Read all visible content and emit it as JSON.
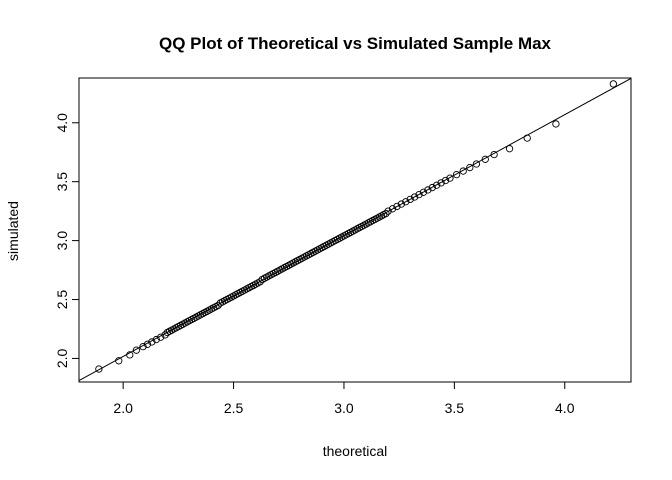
{
  "chart_data": {
    "type": "scatter",
    "title": "QQ Plot of Theoretical vs Simulated Sample Max",
    "xlabel": "theoretical",
    "ylabel": "simulated",
    "xlim": [
      1.8,
      4.3
    ],
    "ylim": [
      1.8,
      4.38
    ],
    "x_ticks": [
      "2.0",
      "2.5",
      "3.0",
      "3.5",
      "4.0"
    ],
    "y_ticks": [
      "2.0",
      "2.5",
      "3.0",
      "3.5",
      "4.0"
    ],
    "grid": false,
    "legend": "none",
    "point_style": "open-circle",
    "reference_line": {
      "type": "abline",
      "intercept": -0.035,
      "slope": 1.026
    },
    "x": [
      1.89,
      1.98,
      2.03,
      2.06,
      2.09,
      2.11,
      2.13,
      2.15,
      2.17,
      2.19,
      2.2,
      2.21,
      2.22,
      2.23,
      2.24,
      2.25,
      2.26,
      2.27,
      2.28,
      2.29,
      2.3,
      2.31,
      2.32,
      2.33,
      2.34,
      2.35,
      2.36,
      2.37,
      2.38,
      2.39,
      2.4,
      2.41,
      2.42,
      2.43,
      2.44,
      2.45,
      2.46,
      2.47,
      2.48,
      2.49,
      2.5,
      2.51,
      2.52,
      2.53,
      2.54,
      2.55,
      2.56,
      2.57,
      2.58,
      2.59,
      2.6,
      2.61,
      2.62,
      2.63,
      2.64,
      2.65,
      2.66,
      2.67,
      2.68,
      2.69,
      2.7,
      2.71,
      2.72,
      2.73,
      2.74,
      2.75,
      2.76,
      2.77,
      2.78,
      2.79,
      2.8,
      2.81,
      2.82,
      2.83,
      2.84,
      2.85,
      2.86,
      2.87,
      2.88,
      2.89,
      2.9,
      2.91,
      2.92,
      2.93,
      2.94,
      2.95,
      2.96,
      2.97,
      2.98,
      2.99,
      3.0,
      3.01,
      3.02,
      3.03,
      3.04,
      3.05,
      3.06,
      3.07,
      3.08,
      3.09,
      3.1,
      3.11,
      3.12,
      3.13,
      3.14,
      3.15,
      3.16,
      3.17,
      3.18,
      3.19,
      3.2,
      3.22,
      3.24,
      3.26,
      3.28,
      3.3,
      3.32,
      3.34,
      3.36,
      3.38,
      3.4,
      3.42,
      3.44,
      3.46,
      3.48,
      3.51,
      3.54,
      3.57,
      3.6,
      3.64,
      3.68,
      3.75,
      3.83,
      3.96,
      4.22
    ],
    "y": [
      1.91,
      1.98,
      2.03,
      2.07,
      2.1,
      2.12,
      2.14,
      2.16,
      2.18,
      2.2,
      2.22,
      2.23,
      2.24,
      2.25,
      2.26,
      2.27,
      2.28,
      2.29,
      2.3,
      2.31,
      2.32,
      2.33,
      2.34,
      2.35,
      2.36,
      2.37,
      2.38,
      2.39,
      2.4,
      2.41,
      2.42,
      2.43,
      2.44,
      2.45,
      2.47,
      2.48,
      2.49,
      2.5,
      2.51,
      2.52,
      2.53,
      2.54,
      2.55,
      2.56,
      2.57,
      2.58,
      2.59,
      2.6,
      2.61,
      2.62,
      2.63,
      2.64,
      2.65,
      2.67,
      2.68,
      2.69,
      2.7,
      2.71,
      2.72,
      2.73,
      2.74,
      2.75,
      2.76,
      2.77,
      2.78,
      2.79,
      2.8,
      2.81,
      2.82,
      2.83,
      2.84,
      2.85,
      2.86,
      2.87,
      2.88,
      2.89,
      2.9,
      2.91,
      2.92,
      2.93,
      2.94,
      2.95,
      2.96,
      2.97,
      2.98,
      2.99,
      3.0,
      3.01,
      3.02,
      3.03,
      3.04,
      3.05,
      3.06,
      3.07,
      3.08,
      3.09,
      3.1,
      3.11,
      3.12,
      3.13,
      3.14,
      3.15,
      3.16,
      3.17,
      3.18,
      3.19,
      3.2,
      3.21,
      3.22,
      3.23,
      3.25,
      3.27,
      3.29,
      3.31,
      3.33,
      3.35,
      3.37,
      3.39,
      3.41,
      3.43,
      3.45,
      3.47,
      3.49,
      3.51,
      3.53,
      3.56,
      3.59,
      3.62,
      3.65,
      3.69,
      3.73,
      3.78,
      3.87,
      3.99,
      4.33
    ]
  }
}
